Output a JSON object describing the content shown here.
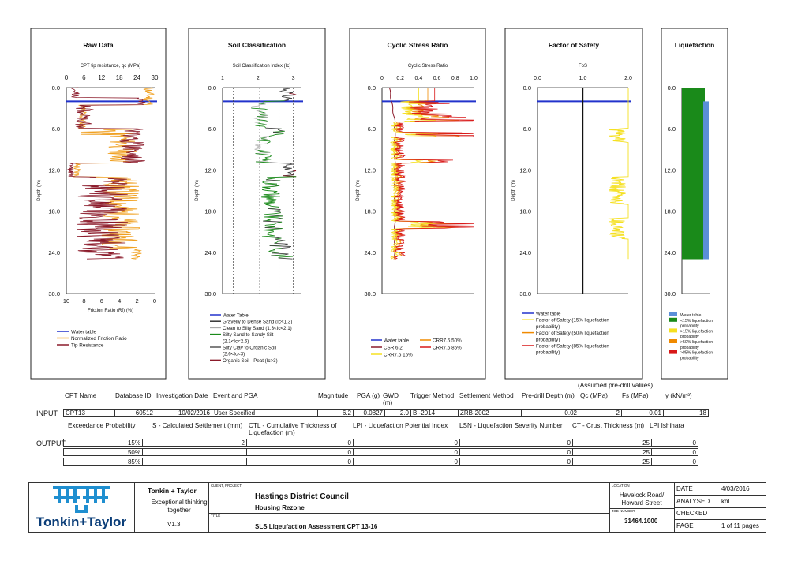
{
  "panels": {
    "raw": {
      "title": "Raw Data",
      "top_axis_label": "CPT tip resistance, qc (MPa)",
      "top_ticks": [
        "0",
        "6",
        "12",
        "18",
        "24",
        "30"
      ],
      "bottom_axis_label": "Friction Ratio (Rf) (%)",
      "bottom_ticks": [
        "10",
        "8",
        "6",
        "4",
        "2",
        "0"
      ],
      "depth_label": "Depth (m)",
      "depth_ticks": [
        "0.0",
        "6.0",
        "12.0",
        "18.0",
        "24.0",
        "30.0"
      ],
      "legend": [
        "Water table",
        "Normalized Friction Ratio",
        "Tip Resistance"
      ]
    },
    "soil": {
      "title": "Soil Classification",
      "top_axis_label": "Soil Classification Index (Ic)",
      "top_ticks": [
        "1",
        "2",
        "3"
      ],
      "depth_label": "Depth (m)",
      "depth_ticks": [
        "0.0",
        "6.0",
        "12.0",
        "18.0",
        "24.0",
        "30.0"
      ],
      "legend": [
        "Water Table",
        "Gravelly to Dense Sand (Ic<1.3)",
        "Clean to Silty Sand (1.3<Ic<2.1)",
        "Silty Sand to Sandy Silt",
        "(2.1<Ic<2.6)",
        "Silty Clay to Organic Soil",
        "(2.6<Ic<3)",
        "Organic Soil - Peat (Ic>3)"
      ]
    },
    "csr": {
      "title": "Cyclic Stress Ratio",
      "top_axis_label": "Cyclic Stress Ratio",
      "top_ticks": [
        "0",
        "0.2",
        "0.4",
        "0.6",
        "0.8",
        "1.0"
      ],
      "depth_label": "Depth (m)",
      "depth_ticks": [
        "0.0",
        "6.0",
        "12.0",
        "18.0",
        "24.0",
        "30.0"
      ],
      "legend": [
        "Water table",
        "CSR 6.2",
        "CRR7.5 15%",
        "CRR7.5 50%",
        "CRR7.5 85%"
      ]
    },
    "fos": {
      "title": "Factor of Safety",
      "top_axis_label": "FoS",
      "top_ticks": [
        "0.0",
        "1.0",
        "2.0"
      ],
      "depth_label": "Depth (m)",
      "depth_ticks": [
        "0.0",
        "6.0",
        "12.0",
        "18.0",
        "24.0",
        "30.0"
      ],
      "legend": [
        "Water table",
        "Factor of Safety (15% liquefaction",
        "probability)",
        "Factor of Safety (50% liquefaction",
        "probability)",
        "Factor of Safety (85% liquefaction",
        "probability)"
      ]
    },
    "liq": {
      "title": "Liquefaction",
      "depth_ticks": [
        "0.0",
        "6.0",
        "12.0",
        "18.0",
        "24.0",
        "30.0"
      ],
      "legend": [
        "Water table",
        "<15% liquefaction",
        "probability",
        ">15% liquefaction",
        "probability",
        ">50% liquefaction",
        "probability",
        ">85% liquefaction",
        "probability"
      ]
    }
  },
  "chart_data": [
    {
      "type": "line",
      "title": "Raw Data",
      "ylabel": "Depth (m)",
      "ylim": [
        0,
        30
      ],
      "series": [
        {
          "name": "Water table",
          "y": 2.0
        },
        {
          "name": "Tip Resistance",
          "color": "#f0a020"
        },
        {
          "name": "Normalized Friction Ratio",
          "color": "#8b1a2a"
        }
      ]
    },
    {
      "type": "line",
      "title": "Soil Classification",
      "ylabel": "Depth (m)",
      "ylim": [
        0,
        30
      ],
      "xlim": [
        1,
        3.4
      ],
      "series": [
        {
          "name": "Water Table",
          "y": 2.0
        }
      ]
    },
    {
      "type": "line",
      "title": "Cyclic Stress Ratio",
      "ylabel": "Depth (m)",
      "ylim": [
        0,
        30
      ],
      "xlim": [
        0,
        1.0
      ],
      "series": [
        {
          "name": "Water table",
          "y": 2.0
        },
        {
          "name": "CSR 6.2"
        },
        {
          "name": "CRR7.5 15%"
        },
        {
          "name": "CRR7.5 50%"
        },
        {
          "name": "CRR7.5 85%"
        }
      ]
    },
    {
      "type": "line",
      "title": "Factor of Safety",
      "ylabel": "Depth (m)",
      "ylim": [
        0,
        30
      ],
      "xlim": [
        0,
        2.0
      ],
      "series": [
        {
          "name": "Water table",
          "y": 2.0
        }
      ]
    },
    {
      "type": "bar",
      "title": "Liquefaction",
      "ylim": [
        0,
        30
      ],
      "series": [
        {
          "name": "<15% liquefaction probability",
          "from": 0,
          "to": 25.0,
          "color": "#1a8a1a"
        },
        {
          "name": "Water table",
          "from": 2.0,
          "to": 25.0,
          "color": "#5b8fd8"
        }
      ]
    }
  ],
  "assumed_note": "(Assumed pre-drill values)",
  "input": {
    "row_label": "INPUT",
    "headers": [
      "CPT Name",
      "Database ID",
      "Investigation Date",
      "Event and PGA",
      "Magnitude",
      "PGA (g)",
      "GWD (m)",
      "Trigger Method",
      "Settlement Method",
      "Pre-drill Depth (m)",
      "Qc (MPa)",
      "Fs (MPa)",
      "γ (kN/m³)"
    ],
    "values": [
      "CPT13",
      "60512",
      "10/02/2016",
      "User Specified",
      "6.2",
      "0.0827",
      "2.0",
      "BI-2014",
      "ZRB-2002",
      "0.02",
      "2",
      "0.01",
      "18"
    ]
  },
  "output": {
    "row_label": "OUTPUT",
    "headers": [
      "Exceedance Probability",
      "S - Calculated Settlement (mm)",
      "CTL - Cumulative Thickness of Liquefaction (m)",
      "LPI - Liquefaction Potential Index",
      "LSN - Liquefaction Severity Number",
      "CT - Crust Thickness (m)",
      "LPI Ishihara"
    ],
    "rows": [
      [
        "15%",
        "2",
        "0",
        "0",
        "0",
        "25",
        "0"
      ],
      [
        "50%",
        "",
        "0",
        "0",
        "0",
        "25",
        "0"
      ],
      [
        "85%",
        "",
        "0",
        "0",
        "0",
        "25",
        "0"
      ]
    ]
  },
  "title_block": {
    "logo_text": "Tonkin+Taylor",
    "company": "Tonkin + Taylor",
    "tagline": "Exceptional thinking together",
    "version": "V1.3",
    "client_label": "CLIENT, PROJECT",
    "client": "Hastings District Council",
    "project": "Housing Rezone",
    "title_label": "TITLE",
    "title": "SLS Liqeufaction Assessment CPT 13-16",
    "location_label": "LOCATION",
    "location": "Havelock Road/ Howard Street",
    "job_label": "JOB NUMBER",
    "job_number": "31464.1000",
    "date_label": "DATE",
    "date": "4/03/2016",
    "analysed_label": "ANALYSED",
    "analysed": "khl",
    "checked_label": "CHECKED",
    "checked": "",
    "page_label": "PAGE",
    "page": "1 of 11 pages"
  },
  "colors": {
    "water": "#2233cc",
    "tip": "#f0a020",
    "friction": "#8b1a2a",
    "green": "#1a8a1a",
    "blue": "#5b8fd8",
    "yellow": "#f5e020",
    "orange": "#f08a00",
    "red": "#d81818"
  }
}
